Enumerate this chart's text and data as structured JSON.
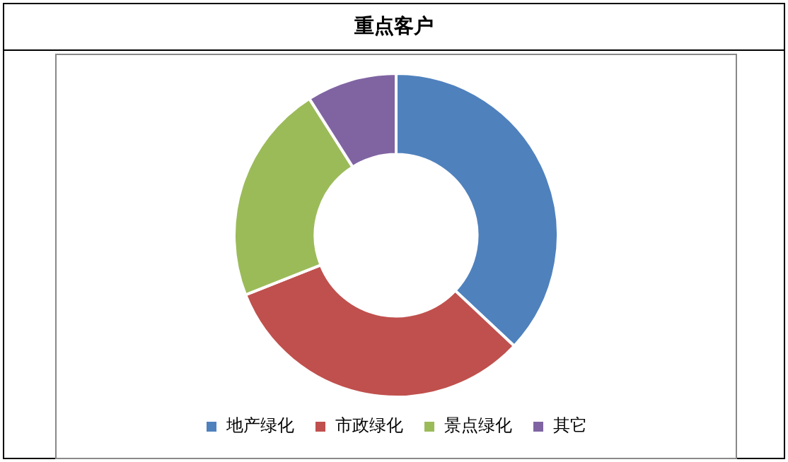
{
  "chart_data": {
    "type": "donut",
    "title": "重点客户",
    "categories": [
      "地产绿化",
      "市政绿化",
      "景点绿化",
      "其它"
    ],
    "values": [
      37,
      32,
      22,
      9
    ],
    "colors": [
      "#4f81bd",
      "#c0504d",
      "#9bbb59",
      "#8064a2"
    ],
    "legend": "bottom"
  }
}
